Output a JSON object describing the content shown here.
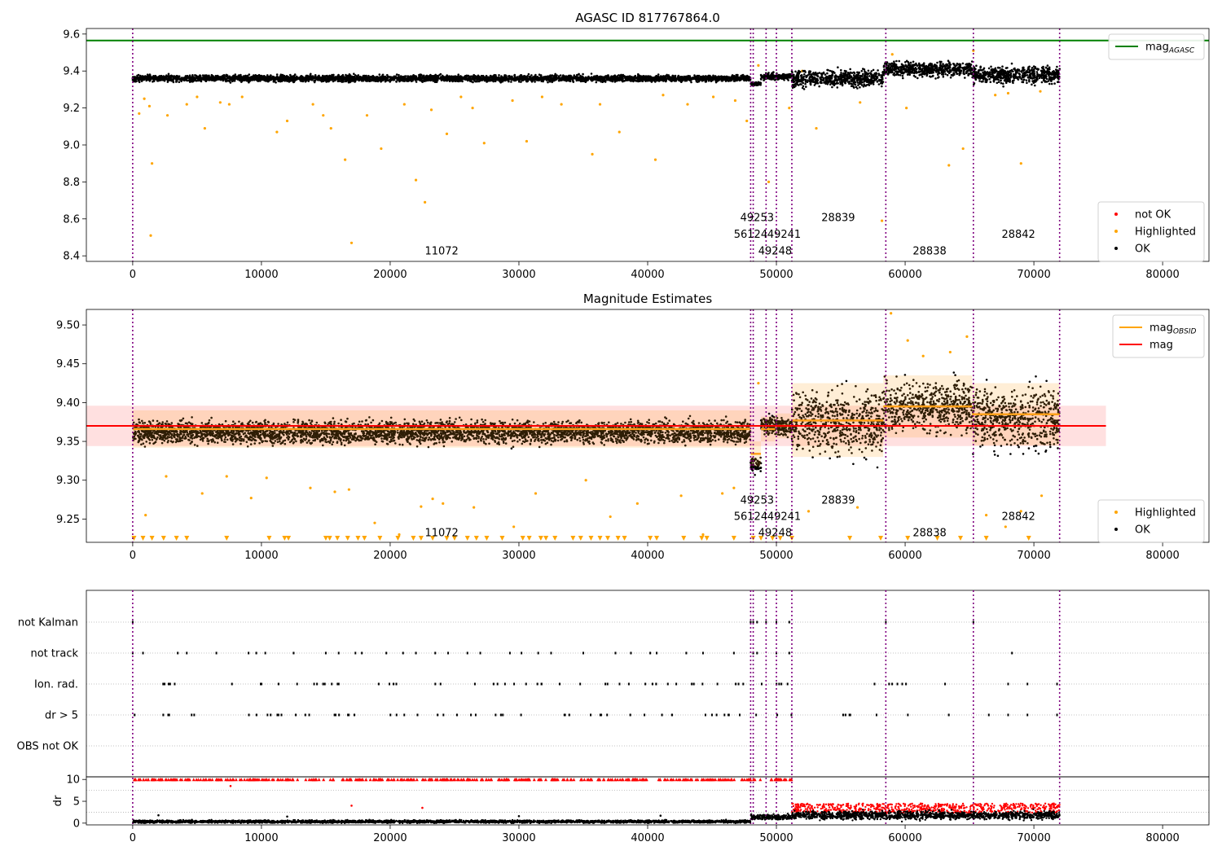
{
  "chart_data": [
    {
      "type": "scatter",
      "title": "AGASC ID 817767864.0",
      "xlabel": "",
      "ylabel": "",
      "xlim": [
        -3600,
        83600
      ],
      "ylim": [
        8.37,
        9.63
      ],
      "xticks": [
        0,
        10000,
        20000,
        30000,
        40000,
        50000,
        60000,
        70000,
        80000
      ],
      "yticks": [
        8.4,
        8.6,
        8.8,
        9.0,
        9.2,
        9.4,
        9.6
      ],
      "ytick_labels": [
        "8.4",
        "8.6",
        "8.8",
        "9.0",
        "9.2",
        "9.4",
        "9.6"
      ],
      "mag_agasc": 9.565,
      "legend_upper": {
        "position": "top-right",
        "entries": [
          {
            "label": "mag",
            "sub": "AGASC",
            "color": "#008000",
            "kind": "line"
          }
        ]
      },
      "legend_lower": {
        "position": "bottom-right",
        "entries": [
          {
            "label": "not OK",
            "color": "#ff0000",
            "kind": "marker"
          },
          {
            "label": "Highlighted",
            "color": "#ffa500",
            "kind": "marker"
          },
          {
            "label": "OK",
            "color": "#000000",
            "kind": "marker"
          }
        ]
      },
      "obsid_labels": [
        {
          "text": "11072",
          "x": 24000,
          "y": 8.43
        },
        {
          "text": "49253",
          "x": 48500,
          "y": 8.61
        },
        {
          "text": "56124",
          "x": 48000,
          "y": 8.52
        },
        {
          "text": "49241",
          "x": 50600,
          "y": 8.52
        },
        {
          "text": "49248",
          "x": 49900,
          "y": 8.43
        },
        {
          "text": "28839",
          "x": 54800,
          "y": 8.61
        },
        {
          "text": "28838",
          "x": 61900,
          "y": 8.43
        },
        {
          "text": "28842",
          "x": 68800,
          "y": 8.52
        }
      ],
      "ok_segments": [
        {
          "x0": 0,
          "x1": 48000,
          "center": 9.36,
          "spread": 0.03
        },
        {
          "x0": 48000,
          "x1": 48800,
          "center": 9.33,
          "spread": 0.02
        },
        {
          "x0": 48800,
          "x1": 51200,
          "center": 9.37,
          "spread": 0.03
        },
        {
          "x0": 51200,
          "x1": 58300,
          "center": 9.36,
          "spread": 0.08
        },
        {
          "x0": 58300,
          "x1": 65200,
          "center": 9.41,
          "spread": 0.07
        },
        {
          "x0": 65200,
          "x1": 72000,
          "center": 9.38,
          "spread": 0.08
        }
      ],
      "highlighted_points": [
        [
          1500,
          8.9
        ],
        [
          1400,
          8.51
        ],
        [
          500,
          9.17
        ],
        [
          900,
          9.25
        ],
        [
          1300,
          9.21
        ],
        [
          2700,
          9.16
        ],
        [
          4200,
          9.22
        ],
        [
          5000,
          9.26
        ],
        [
          5600,
          9.09
        ],
        [
          6800,
          9.23
        ],
        [
          7500,
          9.22
        ],
        [
          8500,
          9.26
        ],
        [
          11200,
          9.07
        ],
        [
          12000,
          9.13
        ],
        [
          14000,
          9.22
        ],
        [
          14800,
          9.16
        ],
        [
          15400,
          9.09
        ],
        [
          16500,
          8.92
        ],
        [
          17000,
          8.47
        ],
        [
          18200,
          9.16
        ],
        [
          19300,
          8.98
        ],
        [
          21100,
          9.22
        ],
        [
          22000,
          8.81
        ],
        [
          22700,
          8.69
        ],
        [
          23200,
          9.19
        ],
        [
          24400,
          9.06
        ],
        [
          25500,
          9.26
        ],
        [
          26400,
          9.2
        ],
        [
          27300,
          9.01
        ],
        [
          29500,
          9.24
        ],
        [
          30600,
          9.02
        ],
        [
          31800,
          9.26
        ],
        [
          33300,
          9.22
        ],
        [
          35700,
          8.95
        ],
        [
          36300,
          9.22
        ],
        [
          37800,
          9.07
        ],
        [
          40600,
          8.92
        ],
        [
          41200,
          9.27
        ],
        [
          43100,
          9.22
        ],
        [
          45100,
          9.26
        ],
        [
          46800,
          9.24
        ],
        [
          47700,
          9.13
        ],
        [
          48600,
          9.43
        ],
        [
          49400,
          8.8
        ],
        [
          51000,
          9.2
        ],
        [
          52000,
          9.4
        ],
        [
          53100,
          9.09
        ],
        [
          56500,
          9.23
        ],
        [
          58200,
          8.59
        ],
        [
          59000,
          9.49
        ],
        [
          60100,
          9.2
        ],
        [
          62000,
          9.4
        ],
        [
          63400,
          8.89
        ],
        [
          64500,
          8.98
        ],
        [
          65300,
          9.51
        ],
        [
          67000,
          9.27
        ],
        [
          68000,
          9.28
        ],
        [
          69000,
          8.9
        ],
        [
          70500,
          9.29
        ]
      ]
    },
    {
      "type": "scatter",
      "title": "Magnitude Estimates",
      "xlabel": "",
      "ylabel": "",
      "xlim": [
        -3600,
        83600
      ],
      "ylim": [
        9.22,
        9.52
      ],
      "xticks": [
        0,
        10000,
        20000,
        30000,
        40000,
        50000,
        60000,
        70000,
        80000
      ],
      "yticks": [
        9.25,
        9.3,
        9.35,
        9.4,
        9.45,
        9.5
      ],
      "ytick_labels": [
        "9.25",
        "9.30",
        "9.35",
        "9.40",
        "9.45",
        "9.50"
      ],
      "mag": 9.37,
      "mag_band": [
        9.344,
        9.396
      ],
      "mag_band_x": [
        -3600,
        75600
      ],
      "mag_obsid": [
        {
          "x0": 0,
          "x1": 48000,
          "value": 9.366,
          "lo": 9.342,
          "hi": 9.39
        },
        {
          "x0": 48000,
          "x1": 48800,
          "value": 9.334,
          "lo": 9.318,
          "hi": 9.35
        },
        {
          "x0": 48800,
          "x1": 49900,
          "value": 9.366,
          "lo": 9.35,
          "hi": 9.382
        },
        {
          "x0": 49900,
          "x1": 51200,
          "value": 9.37,
          "lo": 9.354,
          "hi": 9.386
        },
        {
          "x0": 51200,
          "x1": 58300,
          "value": 9.377,
          "lo": 9.33,
          "hi": 9.425
        },
        {
          "x0": 58300,
          "x1": 65200,
          "value": 9.395,
          "lo": 9.355,
          "hi": 9.435
        },
        {
          "x0": 65200,
          "x1": 72000,
          "value": 9.385,
          "lo": 9.345,
          "hi": 9.425
        }
      ],
      "legend_upper": {
        "position": "top-right",
        "entries": [
          {
            "label": "mag",
            "sub": "OBSID",
            "color": "#ffa500",
            "kind": "line"
          },
          {
            "label": "mag",
            "sub": "",
            "color": "#ff0000",
            "kind": "line"
          }
        ]
      },
      "legend_lower": {
        "position": "bottom-right",
        "entries": [
          {
            "label": "Highlighted",
            "color": "#ffa500",
            "kind": "marker"
          },
          {
            "label": "OK",
            "color": "#000000",
            "kind": "marker"
          }
        ]
      },
      "obsid_labels": [
        {
          "text": "11072",
          "x": 24000,
          "y": 9.233
        },
        {
          "text": "49253",
          "x": 48500,
          "y": 9.275
        },
        {
          "text": "56124",
          "x": 48000,
          "y": 9.254
        },
        {
          "text": "49241",
          "x": 50600,
          "y": 9.254
        },
        {
          "text": "49248",
          "x": 49900,
          "y": 9.233
        },
        {
          "text": "28839",
          "x": 54800,
          "y": 9.275
        },
        {
          "text": "28838",
          "x": 61900,
          "y": 9.233
        },
        {
          "text": "28842",
          "x": 68800,
          "y": 9.254
        }
      ],
      "ok_segments": [
        {
          "x0": 0,
          "x1": 48000,
          "center": 9.362,
          "spread": 0.025
        },
        {
          "x0": 48000,
          "x1": 48800,
          "center": 9.32,
          "spread": 0.015
        },
        {
          "x0": 48800,
          "x1": 51200,
          "center": 9.37,
          "spread": 0.02
        },
        {
          "x0": 51200,
          "x1": 58300,
          "center": 9.375,
          "spread": 0.07
        },
        {
          "x0": 58300,
          "x1": 65200,
          "center": 9.395,
          "spread": 0.055
        },
        {
          "x0": 65200,
          "x1": 72000,
          "center": 9.38,
          "spread": 0.07
        }
      ],
      "highlighted_points": [
        [
          1000,
          9.255
        ],
        [
          2600,
          9.305
        ],
        [
          5400,
          9.283
        ],
        [
          7300,
          9.305
        ],
        [
          9200,
          9.277
        ],
        [
          10400,
          9.303
        ],
        [
          13800,
          9.29
        ],
        [
          15700,
          9.285
        ],
        [
          16800,
          9.288
        ],
        [
          18800,
          9.245
        ],
        [
          20700,
          9.23
        ],
        [
          22400,
          9.266
        ],
        [
          23300,
          9.276
        ],
        [
          24100,
          9.27
        ],
        [
          26500,
          9.265
        ],
        [
          29600,
          9.24
        ],
        [
          31300,
          9.283
        ],
        [
          35200,
          9.3
        ],
        [
          37100,
          9.253
        ],
        [
          39200,
          9.27
        ],
        [
          42600,
          9.28
        ],
        [
          44300,
          9.23
        ],
        [
          45800,
          9.283
        ],
        [
          46700,
          9.29
        ],
        [
          48600,
          9.425
        ],
        [
          52500,
          9.26
        ],
        [
          56300,
          9.265
        ],
        [
          58900,
          9.515
        ],
        [
          60200,
          9.48
        ],
        [
          61400,
          9.46
        ],
        [
          63500,
          9.465
        ],
        [
          64800,
          9.485
        ],
        [
          66300,
          9.255
        ],
        [
          67800,
          9.24
        ],
        [
          69000,
          9.26
        ],
        [
          70600,
          9.28
        ]
      ],
      "floor_markers_x": [
        100,
        800,
        1500,
        2400,
        3400,
        4200,
        7300,
        10600,
        11800,
        12100,
        15000,
        15300,
        15900,
        16700,
        17500,
        18000,
        19200,
        20600,
        21800,
        22400,
        23300,
        24400,
        25000,
        26000,
        26700,
        27500,
        28700,
        30300,
        30800,
        31700,
        32100,
        32800,
        34200,
        34800,
        35600,
        36300,
        36900,
        37700,
        38200,
        40200,
        40700,
        42800,
        44200,
        44600,
        46700,
        48200,
        48800,
        49700,
        50300,
        51200,
        55700,
        58100,
        60200,
        62500,
        64300,
        66300,
        69600
      ]
    },
    {
      "type": "scatter",
      "title": "",
      "xlabel": "",
      "ylabel": "",
      "xlim": [
        -3600,
        83600
      ],
      "xticks": [
        0,
        10000,
        20000,
        30000,
        40000,
        50000,
        60000,
        70000,
        80000
      ],
      "flag_rows": [
        {
          "label": "not Kalman",
          "x": [
            0,
            48000,
            48200,
            48500,
            49200,
            50000,
            51000,
            58500,
            65300
          ]
        },
        {
          "label": "not track",
          "x": [
            0,
            800,
            3500,
            4200,
            6500,
            9000,
            9600,
            10300,
            12500,
            15000,
            16000,
            17300,
            17800,
            19700,
            21000,
            22000,
            23500,
            24500,
            26000,
            27000,
            29300,
            30200,
            31500,
            32500,
            35000,
            37500,
            38700,
            40200,
            40700,
            43000,
            44300,
            46700,
            48200,
            48500,
            50000,
            51000,
            68300
          ]
        },
        {
          "label": "Ion. rad.",
          "range": [
            [
              0,
              51200
            ],
            [
              55000,
              60500
            ],
            [
              63000,
              63500
            ]
          ],
          "extra": [
            68000,
            69500,
            71800
          ]
        },
        {
          "label": "dr > 5",
          "range": [
            [
              0,
              51200
            ],
            [
              55000,
              60500
            ],
            [
              63000,
              63500
            ]
          ],
          "extra": [
            66500,
            68000,
            69500,
            71800
          ]
        },
        {
          "label": "OBS not OK",
          "x": []
        }
      ],
      "dr_axis": {
        "ylabel": "dr",
        "ylim": [
          -0.4,
          10.6
        ],
        "yticks": [
          0,
          5,
          10
        ],
        "ytick_labels": [
          "0",
          "5",
          "10"
        ]
      },
      "dr_not_ok_level": 10,
      "dr_segments": [
        {
          "x0": 0,
          "x1": 48000,
          "center": 0.35,
          "spread": 0.3
        },
        {
          "x0": 48000,
          "x1": 51200,
          "center": 1.4,
          "spread": 0.6
        },
        {
          "x0": 51200,
          "x1": 72000,
          "center": 1.8,
          "spread": 0.9
        }
      ],
      "dr_red_band": {
        "x0": 51200,
        "x1": 72000,
        "lo": 2.3,
        "hi": 4.5
      },
      "dr_outliers": [
        [
          7600,
          8.5
        ],
        [
          17000,
          4.0
        ],
        [
          22500,
          3.5
        ],
        [
          2000,
          1.8
        ],
        [
          12000,
          1.5
        ],
        [
          30000,
          1.6
        ],
        [
          41000,
          1.7
        ]
      ]
    }
  ],
  "obsid_boundaries": [
    0,
    48000,
    48200,
    49200,
    50000,
    51200,
    58500,
    65300,
    72000
  ],
  "colors": {
    "ok": "#000000",
    "highlighted": "#ffa500",
    "not_ok": "#ff0000",
    "agasc": "#008000",
    "obsid": "#ff9f1a",
    "mag": "#ff0000",
    "boundary": "#800080"
  }
}
